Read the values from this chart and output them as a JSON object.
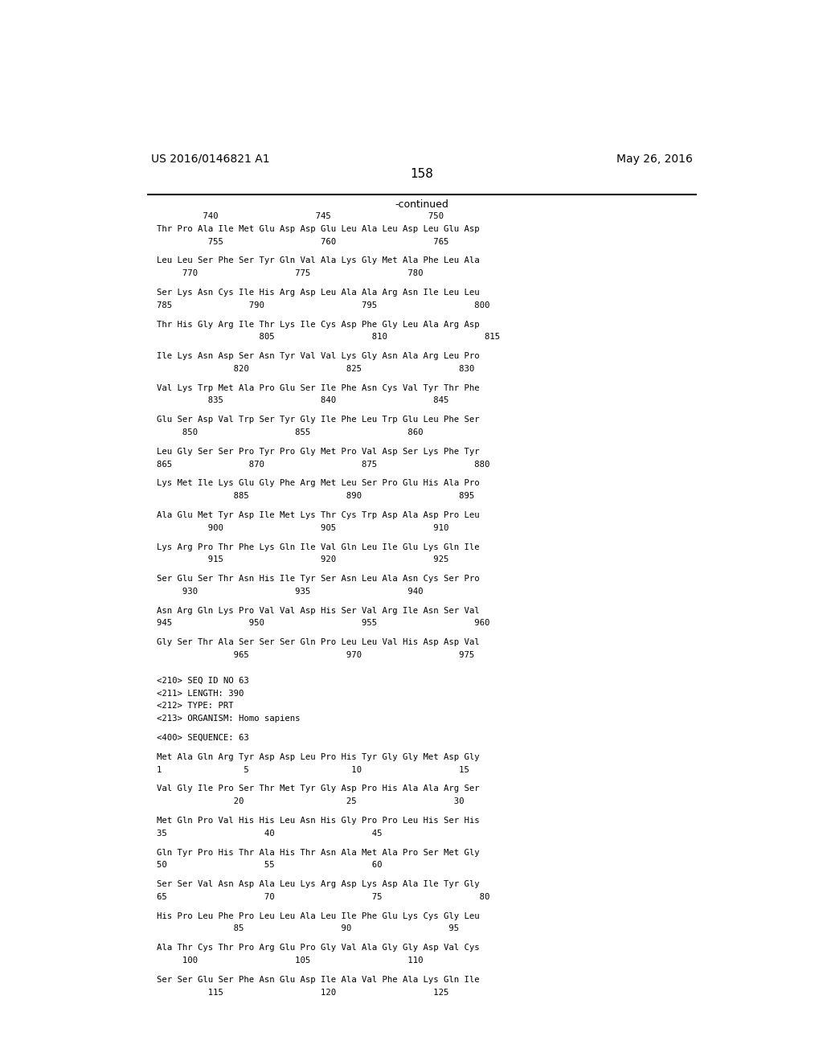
{
  "header_left": "US 2016/0146821 A1",
  "header_right": "May 26, 2016",
  "page_number": "158",
  "continued_label": "-continued",
  "background_color": "#ffffff",
  "text_color": "#000000",
  "lines": [
    {
      "type": "number_row",
      "text": "         740                   745                   750"
    },
    {
      "type": "seq_row",
      "text": "Thr Pro Ala Ile Met Glu Asp Asp Glu Leu Ala Leu Asp Leu Glu Asp"
    },
    {
      "type": "num_sub",
      "text": "          755                   760                   765"
    },
    {
      "type": "blank"
    },
    {
      "type": "seq_row",
      "text": "Leu Leu Ser Phe Ser Tyr Gln Val Ala Lys Gly Met Ala Phe Leu Ala"
    },
    {
      "type": "num_sub",
      "text": "     770                   775                   780"
    },
    {
      "type": "blank"
    },
    {
      "type": "seq_row",
      "text": "Ser Lys Asn Cys Ile His Arg Asp Leu Ala Ala Arg Asn Ile Leu Leu"
    },
    {
      "type": "num_sub",
      "text": "785               790                   795                   800"
    },
    {
      "type": "blank"
    },
    {
      "type": "seq_row",
      "text": "Thr His Gly Arg Ile Thr Lys Ile Cys Asp Phe Gly Leu Ala Arg Asp"
    },
    {
      "type": "num_sub",
      "text": "                    805                   810                   815"
    },
    {
      "type": "blank"
    },
    {
      "type": "seq_row",
      "text": "Ile Lys Asn Asp Ser Asn Tyr Val Val Lys Gly Asn Ala Arg Leu Pro"
    },
    {
      "type": "num_sub",
      "text": "               820                   825                   830"
    },
    {
      "type": "blank"
    },
    {
      "type": "seq_row",
      "text": "Val Lys Trp Met Ala Pro Glu Ser Ile Phe Asn Cys Val Tyr Thr Phe"
    },
    {
      "type": "num_sub",
      "text": "          835                   840                   845"
    },
    {
      "type": "blank"
    },
    {
      "type": "seq_row",
      "text": "Glu Ser Asp Val Trp Ser Tyr Gly Ile Phe Leu Trp Glu Leu Phe Ser"
    },
    {
      "type": "num_sub",
      "text": "     850                   855                   860"
    },
    {
      "type": "blank"
    },
    {
      "type": "seq_row",
      "text": "Leu Gly Ser Ser Pro Tyr Pro Gly Met Pro Val Asp Ser Lys Phe Tyr"
    },
    {
      "type": "num_sub",
      "text": "865               870                   875                   880"
    },
    {
      "type": "blank"
    },
    {
      "type": "seq_row",
      "text": "Lys Met Ile Lys Glu Gly Phe Arg Met Leu Ser Pro Glu His Ala Pro"
    },
    {
      "type": "num_sub",
      "text": "               885                   890                   895"
    },
    {
      "type": "blank"
    },
    {
      "type": "seq_row",
      "text": "Ala Glu Met Tyr Asp Ile Met Lys Thr Cys Trp Asp Ala Asp Pro Leu"
    },
    {
      "type": "num_sub",
      "text": "          900                   905                   910"
    },
    {
      "type": "blank"
    },
    {
      "type": "seq_row",
      "text": "Lys Arg Pro Thr Phe Lys Gln Ile Val Gln Leu Ile Glu Lys Gln Ile"
    },
    {
      "type": "num_sub",
      "text": "          915                   920                   925"
    },
    {
      "type": "blank"
    },
    {
      "type": "seq_row",
      "text": "Ser Glu Ser Thr Asn His Ile Tyr Ser Asn Leu Ala Asn Cys Ser Pro"
    },
    {
      "type": "num_sub",
      "text": "     930                   935                   940"
    },
    {
      "type": "blank"
    },
    {
      "type": "seq_row",
      "text": "Asn Arg Gln Lys Pro Val Val Asp His Ser Val Arg Ile Asn Ser Val"
    },
    {
      "type": "num_sub",
      "text": "945               950                   955                   960"
    },
    {
      "type": "blank"
    },
    {
      "type": "seq_row",
      "text": "Gly Ser Thr Ala Ser Ser Ser Gln Pro Leu Leu Val His Asp Asp Val"
    },
    {
      "type": "num_sub",
      "text": "               965                   970                   975"
    },
    {
      "type": "blank"
    },
    {
      "type": "blank"
    },
    {
      "type": "meta",
      "text": "<210> SEQ ID NO 63"
    },
    {
      "type": "meta",
      "text": "<211> LENGTH: 390"
    },
    {
      "type": "meta",
      "text": "<212> TYPE: PRT"
    },
    {
      "type": "meta",
      "text": "<213> ORGANISM: Homo sapiens"
    },
    {
      "type": "blank"
    },
    {
      "type": "meta",
      "text": "<400> SEQUENCE: 63"
    },
    {
      "type": "blank"
    },
    {
      "type": "seq_row",
      "text": "Met Ala Gln Arg Tyr Asp Asp Leu Pro His Tyr Gly Gly Met Asp Gly"
    },
    {
      "type": "num_sub",
      "text": "1                5                    10                   15"
    },
    {
      "type": "blank"
    },
    {
      "type": "seq_row",
      "text": "Val Gly Ile Pro Ser Thr Met Tyr Gly Asp Pro His Ala Ala Arg Ser"
    },
    {
      "type": "num_sub",
      "text": "               20                    25                   30"
    },
    {
      "type": "blank"
    },
    {
      "type": "seq_row",
      "text": "Met Gln Pro Val His His Leu Asn His Gly Pro Pro Leu His Ser His"
    },
    {
      "type": "num_sub",
      "text": "35                   40                   45"
    },
    {
      "type": "blank"
    },
    {
      "type": "seq_row",
      "text": "Gln Tyr Pro His Thr Ala His Thr Asn Ala Met Ala Pro Ser Met Gly"
    },
    {
      "type": "num_sub",
      "text": "50                   55                   60"
    },
    {
      "type": "blank"
    },
    {
      "type": "seq_row",
      "text": "Ser Ser Val Asn Asp Ala Leu Lys Arg Asp Lys Asp Ala Ile Tyr Gly"
    },
    {
      "type": "num_sub",
      "text": "65                   70                   75                   80"
    },
    {
      "type": "blank"
    },
    {
      "type": "seq_row",
      "text": "His Pro Leu Phe Pro Leu Leu Ala Leu Ile Phe Glu Lys Cys Gly Leu"
    },
    {
      "type": "num_sub",
      "text": "               85                   90                   95"
    },
    {
      "type": "blank"
    },
    {
      "type": "seq_row",
      "text": "Ala Thr Cys Thr Pro Arg Glu Pro Gly Val Ala Gly Gly Asp Val Cys"
    },
    {
      "type": "num_sub",
      "text": "     100                   105                   110"
    },
    {
      "type": "blank"
    },
    {
      "type": "seq_row",
      "text": "Ser Ser Glu Ser Phe Asn Glu Asp Ile Ala Val Phe Ala Lys Gln Ile"
    },
    {
      "type": "num_sub",
      "text": "          115                   120                   125"
    }
  ]
}
